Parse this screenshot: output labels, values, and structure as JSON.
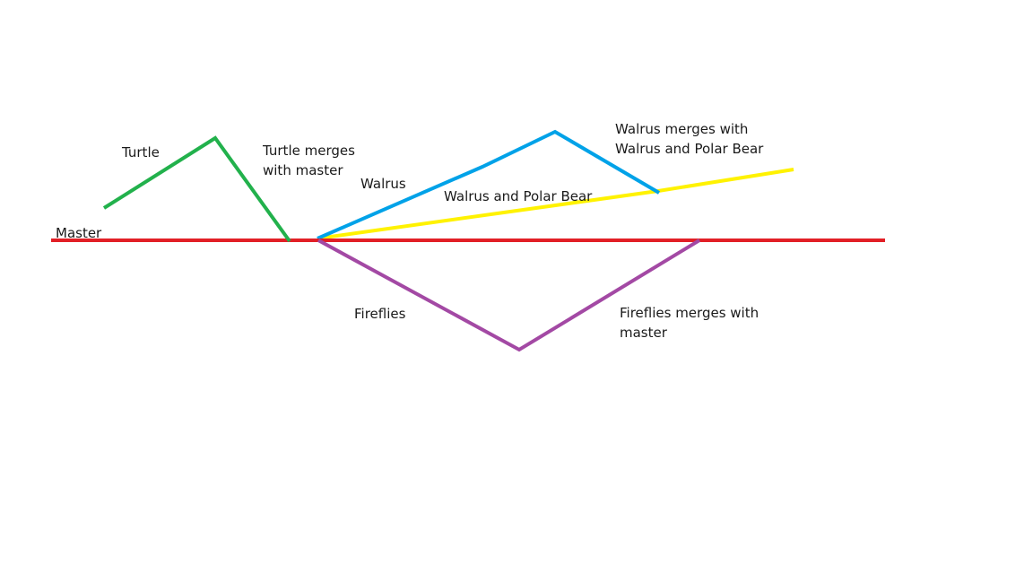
{
  "colors": {
    "background": "#ffffff",
    "master": "#e21f26",
    "turtle": "#22b14c",
    "walrus": "#00a2e8",
    "walrus_and_polar_bear": "#fff200",
    "fireflies": "#a349a4",
    "text": "#1a1a1a"
  },
  "labels": {
    "master": "Master",
    "turtle": "Turtle",
    "turtle_merge": [
      "Turtle merges",
      "with master"
    ],
    "walrus": "Walrus",
    "walrus_and_polar_bear": "Walrus and Polar Bear",
    "walrus_merge": [
      "Walrus merges with",
      "Walrus and Polar Bear"
    ],
    "fireflies": "Fireflies",
    "fireflies_merge": [
      "Fireflies merges with",
      "master"
    ]
  }
}
